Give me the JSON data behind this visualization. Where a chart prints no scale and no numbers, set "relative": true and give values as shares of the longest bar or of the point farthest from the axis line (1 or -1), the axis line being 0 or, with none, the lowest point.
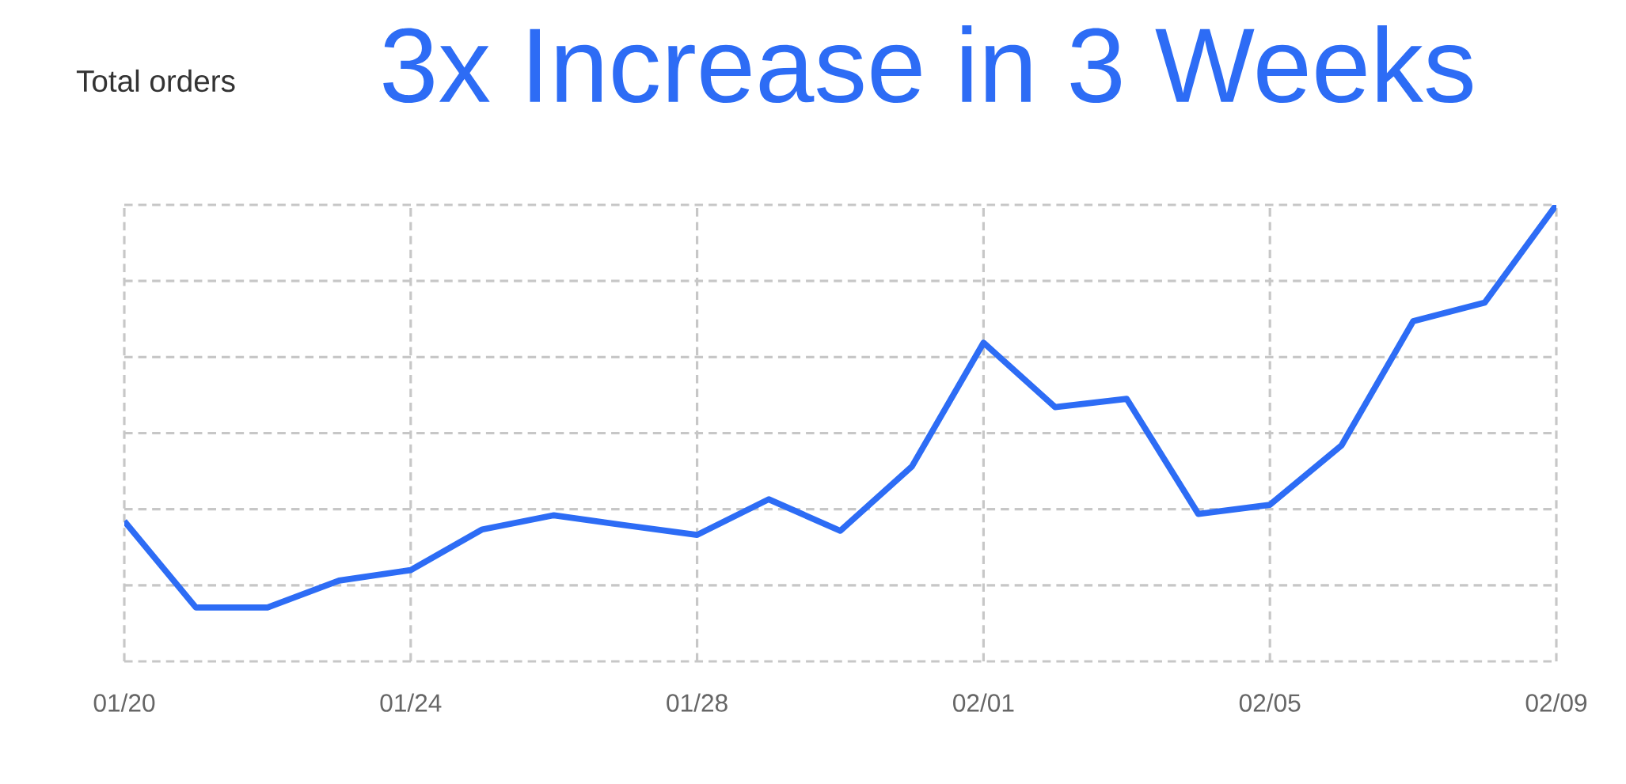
{
  "chart_data": {
    "type": "line",
    "title": "3x Increase in 3 Weeks",
    "ylabel": "Total orders",
    "categories": [
      "01/20",
      null,
      null,
      null,
      "01/24",
      null,
      null,
      null,
      "01/28",
      null,
      null,
      null,
      "02/01",
      null,
      null,
      null,
      "02/05",
      null,
      null,
      null,
      "02/09"
    ],
    "series": [
      {
        "color": "#2d6cf5",
        "values": [
          0.307,
          0.118,
          0.118,
          0.177,
          0.2,
          0.289,
          0.32,
          0.298,
          0.277,
          0.355,
          0.286,
          0.427,
          0.698,
          0.557,
          0.575,
          0.323,
          0.343,
          0.473,
          0.745,
          0.786,
          1
        ]
      }
    ],
    "relative": true,
    "grid": true
  }
}
